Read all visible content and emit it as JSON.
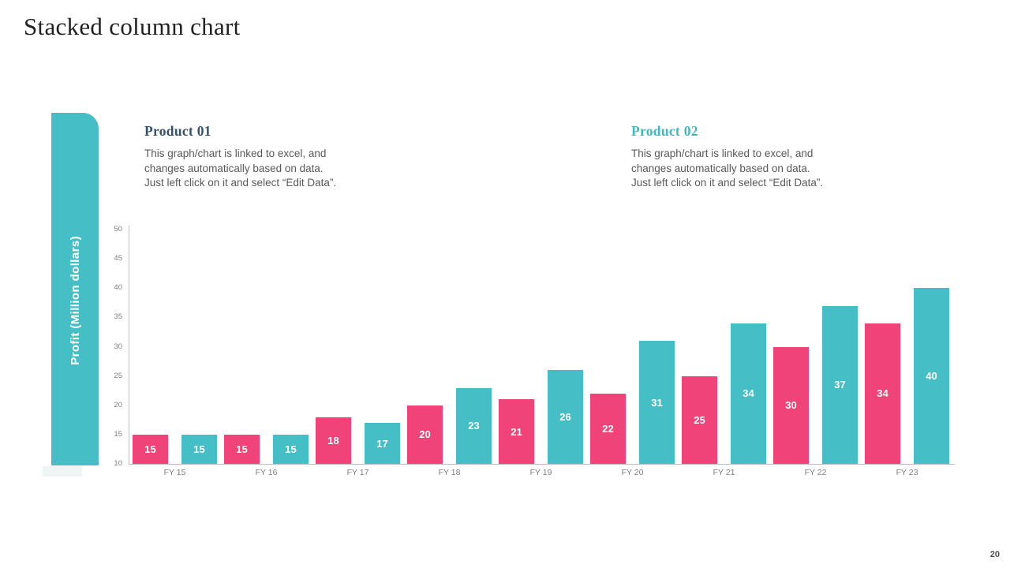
{
  "slide": {
    "title": "Stacked column chart",
    "page_number": "20"
  },
  "sidebar": {
    "label": "Profit (Million dollars)",
    "color": "#45BFC5"
  },
  "products": [
    {
      "heading": "Product 01",
      "heading_color": "#34506B",
      "description": "This graph/chart is linked to excel, and\nchanges automatically based on data.\nJust left click on it and select “Edit Data”."
    },
    {
      "heading": "Product 02",
      "heading_color": "#3FB8BF",
      "description": "This graph/chart is linked to excel, and\nchanges automatically based on data.\nJust left click on it and select “Edit Data”."
    }
  ],
  "chart_data": {
    "type": "bar",
    "title": "",
    "xlabel": "",
    "ylabel": "Profit (Million dollars)",
    "categories": [
      "FY 15",
      "FY 16",
      "FY 17",
      "FY 18",
      "FY 19",
      "FY 20",
      "FY 21",
      "FY 22",
      "FY 23"
    ],
    "series": [
      {
        "name": "Product 01",
        "color": "#F0437A",
        "values": [
          15,
          15,
          18,
          20,
          21,
          22,
          25,
          30,
          34
        ]
      },
      {
        "name": "Product 02",
        "color": "#45BFC5",
        "values": [
          15,
          15,
          17,
          23,
          26,
          31,
          34,
          37,
          40
        ]
      }
    ],
    "ylim": [
      10,
      50
    ],
    "ytick_step": 5,
    "grid": false,
    "legend_position": "none",
    "value_labels": true,
    "axis_color": "#bfbfbf",
    "tick_label_color": "#7f7f7f"
  }
}
